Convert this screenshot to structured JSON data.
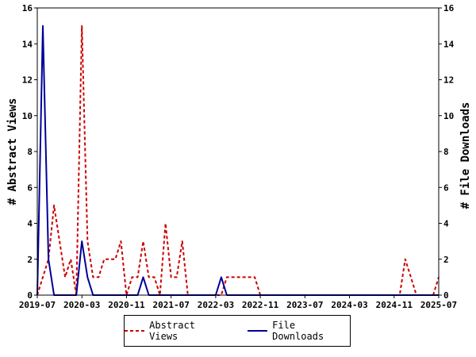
{
  "chart_data": {
    "type": "line",
    "x_ticks": [
      "2019-07",
      "2020-03",
      "2020-11",
      "2021-07",
      "2022-03",
      "2022-11",
      "2023-07",
      "2024-03",
      "2024-11",
      "2025-07"
    ],
    "xlim": [
      "2019-07",
      "2025-07"
    ],
    "ylim": [
      0,
      16
    ],
    "y_ticks": [
      0,
      2,
      4,
      6,
      8,
      10,
      12,
      14,
      16
    ],
    "ylabel_left": "# Abstract Views",
    "ylabel_right": "# File Downloads",
    "grid": false,
    "legend_position": "bottom",
    "series": [
      {
        "name": "Abstract Views",
        "axis": "left",
        "color": "#cc0000",
        "style": "dashed",
        "points": [
          [
            "2019-07",
            0
          ],
          [
            "2019-08",
            1
          ],
          [
            "2019-09",
            2
          ],
          [
            "2019-10",
            5
          ],
          [
            "2019-11",
            3
          ],
          [
            "2019-12",
            1
          ],
          [
            "2020-01",
            2
          ],
          [
            "2020-02",
            0
          ],
          [
            "2020-03",
            15
          ],
          [
            "2020-04",
            3
          ],
          [
            "2020-05",
            1
          ],
          [
            "2020-06",
            1
          ],
          [
            "2020-07",
            2
          ],
          [
            "2020-08",
            2
          ],
          [
            "2020-09",
            2
          ],
          [
            "2020-10",
            3
          ],
          [
            "2020-11",
            0
          ],
          [
            "2020-12",
            1
          ],
          [
            "2021-01",
            1
          ],
          [
            "2021-02",
            3
          ],
          [
            "2021-03",
            1
          ],
          [
            "2021-04",
            1
          ],
          [
            "2021-05",
            0
          ],
          [
            "2021-06",
            4
          ],
          [
            "2021-07",
            1
          ],
          [
            "2021-08",
            1
          ],
          [
            "2021-09",
            3
          ],
          [
            "2021-10",
            0
          ],
          [
            "2021-11",
            0
          ],
          [
            "2022-04",
            0
          ],
          [
            "2022-05",
            1
          ],
          [
            "2022-06",
            1
          ],
          [
            "2022-07",
            1
          ],
          [
            "2022-08",
            1
          ],
          [
            "2022-09",
            1
          ],
          [
            "2022-10",
            1
          ],
          [
            "2022-11",
            0
          ],
          [
            "2024-12",
            0
          ],
          [
            "2025-01",
            2
          ],
          [
            "2025-02",
            1
          ],
          [
            "2025-03",
            0
          ],
          [
            "2025-06",
            0
          ],
          [
            "2025-07",
            1
          ]
        ]
      },
      {
        "name": "File Downloads",
        "axis": "right",
        "color": "#000099",
        "style": "solid",
        "points": [
          [
            "2019-07",
            0
          ],
          [
            "2019-08",
            15
          ],
          [
            "2019-09",
            2
          ],
          [
            "2019-10",
            0
          ],
          [
            "2020-02",
            0
          ],
          [
            "2020-03",
            3
          ],
          [
            "2020-04",
            1
          ],
          [
            "2020-05",
            0
          ],
          [
            "2021-01",
            0
          ],
          [
            "2021-02",
            1
          ],
          [
            "2021-03",
            0
          ],
          [
            "2022-03",
            0
          ],
          [
            "2022-04",
            1
          ],
          [
            "2022-05",
            0
          ],
          [
            "2025-07",
            0
          ]
        ]
      }
    ]
  }
}
